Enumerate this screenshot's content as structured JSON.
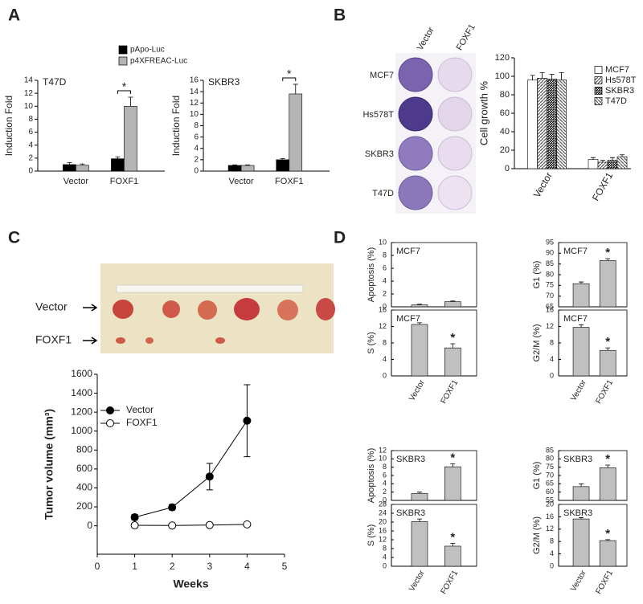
{
  "panel_labels": [
    "A",
    "B",
    "C",
    "D"
  ],
  "photos": [
    {
      "column_labels": [
        "Vector",
        "FOXF1"
      ],
      "row_labels": [
        "MCF7",
        "Hs578T",
        "SKBR3",
        "T47D"
      ]
    },
    {
      "row_labels": [
        "Vector",
        "FOXF1"
      ]
    }
  ],
  "chart_data": [
    {
      "type": "bar",
      "annotation": "T47D",
      "significance": "*",
      "y_label": "Induction Fold",
      "categories": [
        "Vector",
        "FOXF1"
      ],
      "series": [
        {
          "name": "pApo-Luc",
          "color": "#000000",
          "pattern": "solid",
          "values": [
            1.0,
            1.9
          ],
          "errors": [
            0.3,
            0.3
          ]
        },
        {
          "name": "p4XFREAC-Luc",
          "color": "#b4b4b4",
          "pattern": "solid",
          "values": [
            0.9,
            10.0
          ],
          "errors": [
            0.2,
            1.4
          ]
        }
      ],
      "ylim": [
        0,
        14
      ],
      "yticks": [
        0,
        2,
        4,
        6,
        8,
        10,
        12,
        14
      ]
    },
    {
      "type": "bar",
      "annotation": "SKBR3",
      "significance": "*",
      "y_label": "Induction Fold",
      "categories": [
        "Vector",
        "FOXF1"
      ],
      "series": [
        {
          "color": "#000000",
          "pattern": "solid",
          "values": [
            1.0,
            2.0
          ],
          "errors": [
            0.1,
            0.2
          ]
        },
        {
          "color": "#b4b4b4",
          "pattern": "solid",
          "values": [
            1.0,
            13.6
          ],
          "errors": [
            0.1,
            1.7
          ]
        }
      ],
      "ylim": [
        0,
        16
      ],
      "yticks": [
        0,
        2,
        4,
        6,
        8,
        10,
        12,
        14,
        16
      ]
    },
    {
      "type": "bar",
      "y_label": "Cell growth %",
      "categories": [
        "Vector",
        "FOXF1"
      ],
      "series": [
        {
          "name": "MCF7",
          "color": "#ffffff",
          "pattern": "solid",
          "values": [
            96,
            10
          ],
          "errors": [
            5,
            2
          ]
        },
        {
          "name": "Hs578T",
          "color": "#555555",
          "pattern": "diagonal",
          "values": [
            98,
            7
          ],
          "errors": [
            6,
            2
          ]
        },
        {
          "name": "SKBR3",
          "color": "#111111",
          "pattern": "dense",
          "values": [
            97,
            9
          ],
          "errors": [
            5,
            3
          ]
        },
        {
          "name": "T47D",
          "color": "#555555",
          "pattern": "diagonal-reverse",
          "values": [
            96,
            13
          ],
          "errors": [
            8,
            2
          ]
        }
      ],
      "ylim": [
        0,
        120
      ],
      "yticks": [
        0,
        20,
        40,
        60,
        80,
        100,
        120
      ]
    },
    {
      "type": "line",
      "x_label": "Weeks",
      "y_label": "Tumor volume (mm³)",
      "legend": "upper left",
      "x": [
        1,
        2,
        3,
        4
      ],
      "series": [
        {
          "name": "Vector",
          "color": "#000000",
          "values": [
            90,
            195,
            520,
            1110
          ],
          "errors": [
            30,
            30,
            140,
            380
          ]
        },
        {
          "name": "FOXF1",
          "color": "#ffffff",
          "values": [
            5,
            3,
            8,
            15
          ]
        }
      ],
      "xlim": [
        0,
        5
      ],
      "xticks": [
        0,
        1,
        2,
        3,
        4,
        5
      ],
      "ylim": [
        -300,
        1600
      ],
      "yticks": [
        0,
        200,
        400,
        600,
        800,
        1000,
        1200,
        1400,
        1600
      ]
    },
    {
      "type": "bar",
      "annotation": "MCF7",
      "y_label": "Apoptosis (%)",
      "categories": [
        null,
        null
      ],
      "values": [
        0.3,
        0.8
      ],
      "errors": [
        0.1,
        0.1
      ],
      "color": "#c0c0c0",
      "ylim": [
        0,
        10
      ],
      "yticks": [
        0,
        2,
        4,
        6,
        8,
        10
      ]
    },
    {
      "type": "bar",
      "annotation": "MCF7",
      "significance": "*",
      "y_label": "G1 (%)",
      "categories": [
        null,
        null
      ],
      "values": [
        75.8,
        86.6
      ],
      "errors": [
        0.8,
        0.9
      ],
      "color": "#c0c0c0",
      "ylim": [
        65,
        95
      ],
      "yticks": [
        65,
        70,
        75,
        80,
        85,
        90,
        95
      ]
    },
    {
      "type": "bar",
      "annotation": "MCF7",
      "significance": "*",
      "y_label": "S (%)",
      "categories": [
        "Vector",
        "FOXF1"
      ],
      "values": [
        12.5,
        6.8
      ],
      "errors": [
        0.4,
        1.0
      ],
      "color": "#c0c0c0",
      "ylim": [
        0,
        16
      ],
      "yticks": [
        0,
        4,
        8,
        12,
        16
      ]
    },
    {
      "type": "bar",
      "annotation": "MCF7",
      "significance": "*",
      "y_label": "G2/M (%)",
      "categories": [
        "Vector",
        "FOXF1"
      ],
      "values": [
        11.8,
        6.2
      ],
      "errors": [
        0.6,
        0.6
      ],
      "color": "#c0c0c0",
      "ylim": [
        0,
        16
      ],
      "yticks": [
        0,
        4,
        8,
        12,
        16
      ]
    },
    {
      "type": "bar",
      "annotation": "SKBR3",
      "significance": "*",
      "y_label": "Apoptosis (%)",
      "categories": [
        null,
        null
      ],
      "values": [
        1.7,
        8.1
      ],
      "errors": [
        0.3,
        0.7
      ],
      "color": "#c0c0c0",
      "ylim": [
        0,
        12
      ],
      "yticks": [
        0,
        2,
        4,
        6,
        8,
        10,
        12
      ]
    },
    {
      "type": "bar",
      "annotation": "SKBR3",
      "significance": "*",
      "y_label": "G1 (%)",
      "categories": [
        null,
        null
      ],
      "values": [
        63.3,
        74.7
      ],
      "errors": [
        1.6,
        1.6
      ],
      "color": "#c0c0c0",
      "ylim": [
        55,
        85
      ],
      "yticks": [
        55,
        60,
        65,
        70,
        75,
        80,
        85
      ]
    },
    {
      "type": "bar",
      "annotation": "SKBR3",
      "significance": "*",
      "y_label": "S (%)",
      "categories": [
        "Vector",
        "FOXF1"
      ],
      "values": [
        20.2,
        9.1
      ],
      "errors": [
        1.2,
        1.3
      ],
      "color": "#c0c0c0",
      "ylim": [
        0,
        28
      ],
      "yticks": [
        0,
        4,
        8,
        12,
        16,
        20,
        24,
        28
      ]
    },
    {
      "type": "bar",
      "annotation": "SKBR3",
      "significance": "*",
      "y_label": "G2/M (%)",
      "categories": [
        "Vector",
        "FOXF1"
      ],
      "values": [
        15.3,
        8.3
      ],
      "errors": [
        0.4,
        0.3
      ],
      "color": "#c0c0c0",
      "ylim": [
        0,
        20
      ],
      "yticks": [
        0,
        4,
        8,
        12,
        16,
        20
      ]
    }
  ]
}
